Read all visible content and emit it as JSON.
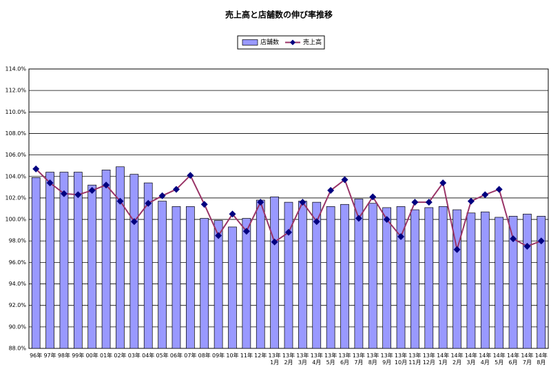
{
  "chart_data": {
    "type": "combo",
    "title": "売上高と店舗数の伸び率推移",
    "categories": [
      "96年",
      "97年",
      "98年",
      "99年",
      "00年",
      "01年",
      "02年",
      "03年",
      "04年",
      "05年",
      "06年",
      "07年",
      "08年",
      "09年",
      "10年",
      "11年",
      "12年",
      "13年\n1月",
      "13年\n2月",
      "13年\n3月",
      "13年\n4月",
      "13年\n5月",
      "13年\n6月",
      "13年\n7月",
      "13年\n8月",
      "13年\n9月",
      "13年\n10月",
      "13年\n11月",
      "13年\n12月",
      "14年\n1月",
      "14年\n2月",
      "14年\n3月",
      "14年\n4月",
      "14年\n5月",
      "14年\n6月",
      "14年\n7月",
      "14年\n8月"
    ],
    "series": [
      {
        "name": "店舗数",
        "type": "bar",
        "color": "#9999ff",
        "values": [
          103.9,
          104.4,
          104.4,
          104.4,
          103.2,
          104.6,
          104.9,
          104.2,
          103.4,
          101.7,
          101.2,
          101.2,
          100.1,
          99.9,
          99.3,
          100.1,
          101.8,
          102.1,
          101.6,
          101.7,
          101.6,
          101.2,
          101.4,
          101.9,
          101.5,
          101.1,
          101.2,
          100.9,
          101.1,
          101.2,
          100.9,
          100.6,
          100.7,
          100.2,
          100.3,
          100.5,
          100.3
        ]
      },
      {
        "name": "売上高",
        "type": "line",
        "color": "#993366",
        "marker_color": "#000080",
        "values": [
          104.7,
          103.4,
          102.4,
          102.3,
          102.7,
          103.2,
          101.7,
          99.8,
          101.5,
          102.2,
          102.8,
          104.1,
          101.4,
          98.5,
          100.5,
          98.9,
          101.6,
          97.9,
          98.8,
          101.6,
          99.8,
          102.7,
          103.7,
          100.1,
          102.1,
          100.0,
          98.4,
          101.6,
          101.6,
          103.4,
          97.2,
          101.7,
          102.3,
          102.8,
          98.2,
          97.5,
          98.0
        ]
      }
    ],
    "ylim": [
      88,
      114
    ],
    "yticks": [
      {
        "value": 88,
        "label": "88.0%"
      },
      {
        "value": 90,
        "label": "90.0%"
      },
      {
        "value": 92,
        "label": "92.0%"
      },
      {
        "value": 94,
        "label": "94.0%"
      },
      {
        "value": 96,
        "label": "96.0%"
      },
      {
        "value": 98,
        "label": "98.0%"
      },
      {
        "value": 100,
        "label": "100.0%"
      },
      {
        "value": 102,
        "label": "102.0%"
      },
      {
        "value": 104,
        "label": "104.0%"
      },
      {
        "value": 106,
        "label": "106.0%"
      },
      {
        "value": 108,
        "label": "108.0%"
      },
      {
        "value": 110,
        "label": "110.0%"
      },
      {
        "value": 112,
        "label": "112.0%"
      },
      {
        "value": 114,
        "label": "114.0%"
      }
    ],
    "grid": true
  }
}
